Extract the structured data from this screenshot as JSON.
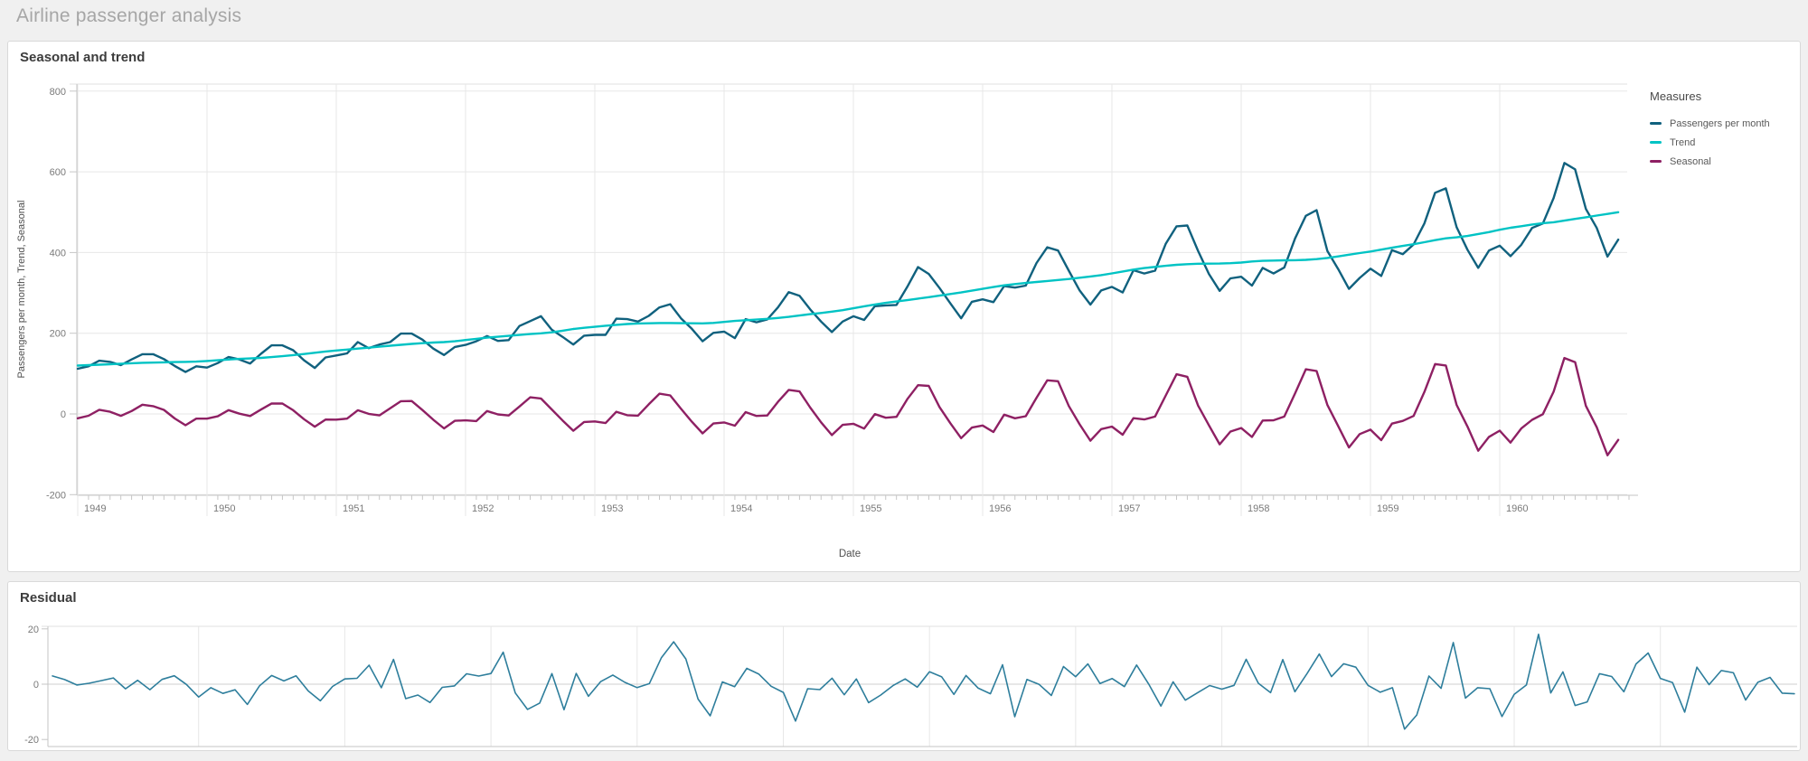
{
  "page": {
    "title": "Airline passenger analysis",
    "background": "#f0f0f0"
  },
  "cards": [
    {
      "title": "Seasonal and trend"
    },
    {
      "title": "Residual"
    }
  ],
  "legend": {
    "title": "Measures",
    "items": [
      {
        "label": "Passengers per month",
        "color": "#10617e"
      },
      {
        "label": "Trend",
        "color": "#00c3c4"
      },
      {
        "label": "Seasonal",
        "color": "#8e2063"
      }
    ]
  },
  "chart_data": [
    {
      "type": "line",
      "title": "Seasonal and trend",
      "xlabel": "Date",
      "ylabel": "Passengers per month, Trend, Seasonal",
      "x_tick_labels": [
        "1949",
        "1950",
        "1951",
        "1952",
        "1953",
        "1954",
        "1955",
        "1956",
        "1957",
        "1958",
        "1959",
        "1960"
      ],
      "x_frequency": "monthly",
      "y_ticks": [
        800,
        600,
        400,
        200,
        0,
        -200
      ],
      "ylim": [
        -202,
        818
      ],
      "grid": true,
      "legend_position": "right",
      "series": [
        {
          "name": "Passengers per month",
          "color": "#10617e",
          "values": [
            112,
            118,
            132,
            129,
            121,
            135,
            148,
            148,
            136,
            119,
            104,
            118,
            115,
            126,
            141,
            135,
            125,
            149,
            170,
            170,
            158,
            133,
            114,
            140,
            145,
            150,
            178,
            163,
            172,
            178,
            199,
            199,
            184,
            162,
            146,
            166,
            171,
            180,
            193,
            181,
            183,
            218,
            230,
            242,
            209,
            191,
            172,
            194,
            196,
            196,
            236,
            235,
            229,
            243,
            264,
            272,
            237,
            211,
            180,
            201,
            204,
            188,
            235,
            227,
            234,
            264,
            302,
            293,
            259,
            229,
            203,
            229,
            242,
            233,
            267,
            269,
            270,
            315,
            364,
            347,
            312,
            274,
            237,
            278,
            284,
            277,
            317,
            313,
            318,
            374,
            413,
            405,
            355,
            306,
            271,
            306,
            315,
            301,
            356,
            348,
            355,
            422,
            465,
            467,
            404,
            347,
            305,
            336,
            340,
            318,
            362,
            348,
            363,
            435,
            491,
            505,
            404,
            359,
            310,
            337,
            360,
            342,
            406,
            396,
            420,
            472,
            548,
            559,
            463,
            407,
            362,
            405,
            417,
            391,
            419,
            461,
            472,
            535,
            622,
            606,
            508,
            461,
            390,
            432
          ]
        },
        {
          "name": "Trend",
          "color": "#00c3c4",
          "derived": "12-month centered moving average of passengers, linearly extrapolated at the ends",
          "value_jan_1949": 120,
          "mid_year_values": [
            126.7,
            139.7,
            170.2,
            197.0,
            225.0,
            238.9,
            284.0,
            328.3,
            368.4,
            381.0,
            428.3,
            476.2
          ],
          "value_dec_1960": 500
        },
        {
          "name": "Seasonal",
          "color": "#8e2063",
          "derived": "per-month detrended values smoothed with a local linear fit across years (±3-year window); oscillates around 0 with growing amplitude",
          "amplitude_1949": {
            "peak_jul": 23,
            "trough_nov": -28
          },
          "amplitude_1960": {
            "peak_jul": 140,
            "trough_nov": -104
          }
        }
      ]
    },
    {
      "type": "line",
      "title": "Residual",
      "xlabel": "",
      "ylabel": "",
      "x_frequency": "monthly",
      "x_range_years": [
        1949,
        1960
      ],
      "y_ticks": [
        20,
        0,
        -20
      ],
      "ylim": [
        -22,
        22
      ],
      "grid": true,
      "series": [
        {
          "name": "Residual",
          "color": "#2e7e9c",
          "derived": "passengers − trend − seasonal; noisy line around 0, roughly within ±18"
        }
      ]
    }
  ]
}
